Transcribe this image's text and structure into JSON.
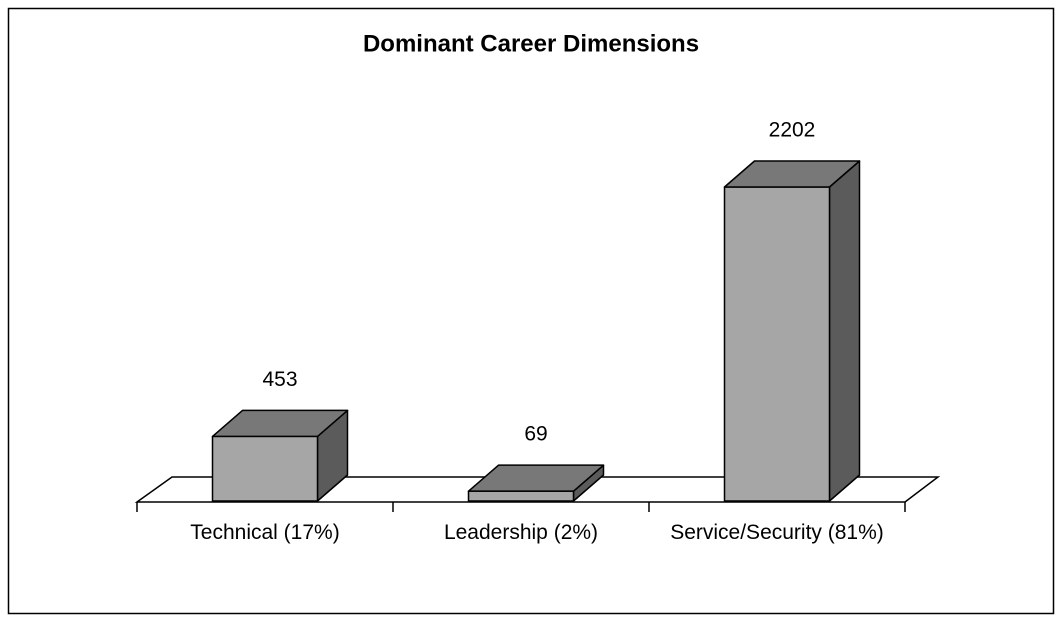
{
  "chart_data": {
    "type": "bar3d",
    "title": "Dominant Career Dimensions",
    "categories": [
      "Technical (17%)",
      "Leadership (2%)",
      "Service/Security (81%)"
    ],
    "values": [
      453,
      69,
      2202
    ],
    "color": "#a6a6a6"
  }
}
